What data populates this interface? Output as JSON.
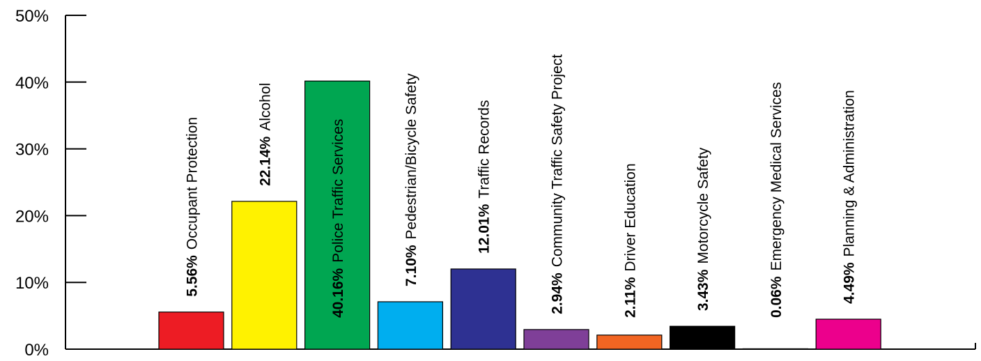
{
  "chart_data": {
    "type": "bar",
    "title": "",
    "xlabel": "",
    "ylabel": "",
    "ylim": [
      0,
      50
    ],
    "y_ticks": [
      "0%",
      "10%",
      "20%",
      "30%",
      "40%",
      "50%"
    ],
    "grid": false,
    "legend": "none",
    "categories": [
      "Occupant Protection",
      "Alcohol",
      "Police Traffic Services",
      "Pedestrian/Bicycle Safety",
      "Traffic Records",
      "Community Traffic Safety Project",
      "Driver Education",
      "Motorcycle Safety",
      "Emergency Medical Services",
      "Planning & Administration"
    ],
    "values": [
      5.56,
      22.14,
      40.16,
      7.1,
      12.01,
      2.94,
      2.11,
      3.43,
      0.06,
      4.49
    ],
    "value_labels": [
      "5.56%",
      "22.14%",
      "40.16%",
      "7.10%",
      "12.01%",
      "2.94%",
      "2.11%",
      "3.43%",
      "0.06%",
      "4.49%"
    ],
    "colors": [
      "#ed1c24",
      "#fff200",
      "#00a651",
      "#00aeef",
      "#2e3192",
      "#7f3f98",
      "#f26522",
      "#000000",
      "#ffffff",
      "#ec008c"
    ],
    "label_colors": [
      "#000000",
      "#000000",
      "#ffffff",
      "#000000",
      "#000000",
      "#000000",
      "#000000",
      "#000000",
      "#000000",
      "#000000"
    ]
  }
}
